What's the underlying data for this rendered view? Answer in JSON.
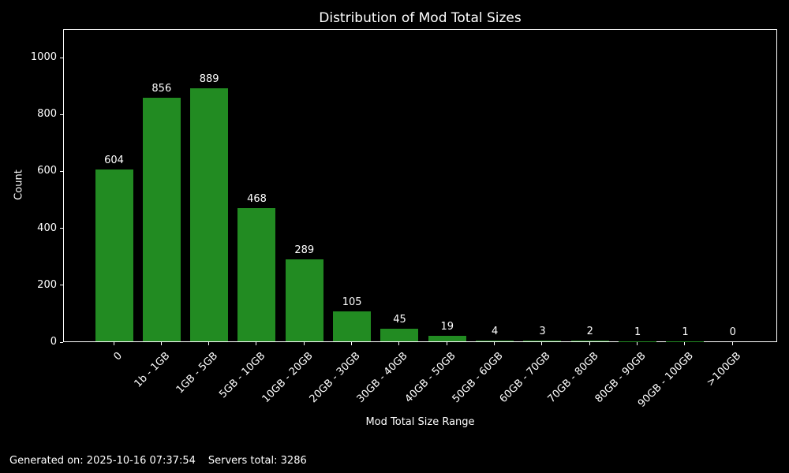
{
  "chart_data": {
    "type": "bar",
    "title": "Distribution of Mod Total Sizes",
    "xlabel": "Mod Total Size Range",
    "ylabel": "Count",
    "categories": [
      "0",
      "1b - 1GB",
      "1GB - 5GB",
      "5GB - 10GB",
      "10GB - 20GB",
      "20GB - 30GB",
      "30GB - 40GB",
      "40GB - 50GB",
      "50GB - 60GB",
      "60GB - 70GB",
      "70GB - 80GB",
      "80GB - 90GB",
      "90GB - 100GB",
      ">100GB"
    ],
    "values": [
      604,
      856,
      889,
      468,
      289,
      105,
      45,
      19,
      4,
      3,
      2,
      1,
      1,
      0
    ],
    "ylim": [
      0,
      1100
    ],
    "yticks": [
      0,
      200,
      400,
      600,
      800,
      1000
    ],
    "bar_color": "#228b22",
    "background_color": "#000000",
    "text_color": "#ffffff",
    "grid": false,
    "xtick_rotation": 45
  },
  "footer": {
    "generated_text": "Generated on: 2025-10-16 07:37:54",
    "servers_text": "Servers total: 3286"
  }
}
